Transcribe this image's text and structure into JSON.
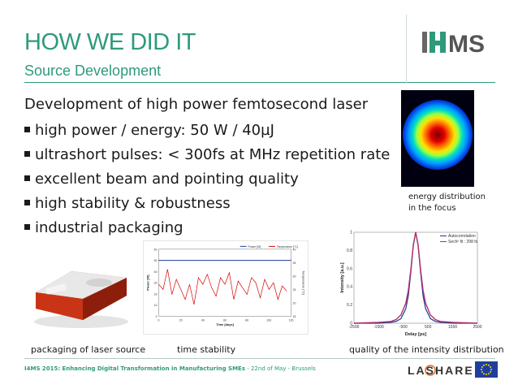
{
  "header": {
    "title": "HOW WE DID IT",
    "subtitle": "Source Development",
    "logo_text": "I4MS"
  },
  "content": {
    "intro": "Development of high power femtosecond laser",
    "bullets": [
      "high power / energy: 50 W / 40µJ",
      "ultrashort pulses: < 300fs at MHz repetition rate",
      "excellent beam and pointing quality",
      "high stability & robustness",
      "industrial packaging"
    ]
  },
  "figures": {
    "beam_caption_line1": "energy distribution",
    "beam_caption_line2": "in the focus",
    "laser_caption": "packaging of laser source",
    "stability_caption": "time stability",
    "intensity_caption": "quality of the intensity distribution"
  },
  "footer": {
    "event": "I4MS 2015:",
    "tagline": "Enhancing Digital Transformation in Manufacturing SMEs",
    "date_place": " - 22nd of May - Brussels",
    "partner_logo": "LASHARE"
  },
  "colors": {
    "accent": "#2e9a7c",
    "series_power": "#1f3a93",
    "series_temperature": "#d40000",
    "series_autocorrelation": "#1f3a93",
    "series_fit": "#b0306e"
  },
  "chart_data": [
    {
      "type": "line",
      "legend": [
        "Power [W]",
        "Temperature [°C]"
      ],
      "xlabel": "Time [days]",
      "ylabel": "Power [W]",
      "ylabel_right": "Temperature [°C]",
      "xlim": [
        0,
        120
      ],
      "ylim": [
        0,
        60
      ],
      "x_ticks": [
        "0",
        "20",
        "40",
        "60",
        "80",
        "100",
        "120"
      ],
      "y_ticks": [
        "0",
        "10",
        "20",
        "30",
        "40",
        "50",
        "60"
      ],
      "y_ticks_right": [
        "15",
        "20",
        "25",
        "30",
        "35",
        "40"
      ],
      "series": [
        {
          "name": "Power [W]",
          "x": [
            0,
            10,
            20,
            30,
            40,
            50,
            60,
            70,
            80,
            90,
            100,
            110,
            120
          ],
          "y": [
            50,
            50,
            50,
            50,
            50,
            50,
            50,
            50,
            50,
            50,
            50,
            50,
            50
          ]
        },
        {
          "name": "Temperature [°C]",
          "x": [
            0,
            4,
            8,
            12,
            16,
            20,
            24,
            28,
            32,
            36,
            40,
            44,
            48,
            52,
            56,
            60,
            64,
            68,
            72,
            76,
            80,
            84,
            88,
            92,
            96,
            100,
            104,
            108,
            112,
            116
          ],
          "y": [
            24,
            21,
            33,
            18,
            27,
            21,
            15,
            24,
            12,
            28,
            24,
            30,
            22,
            17,
            28,
            24,
            31,
            15,
            26,
            22,
            18,
            28,
            25,
            16,
            27,
            21,
            25,
            15,
            23,
            20
          ]
        }
      ]
    },
    {
      "type": "line",
      "legend": [
        "Autocorrelation",
        "Sech² fit : 298 fs"
      ],
      "xlabel": "Delay [ps]",
      "ylabel": "Intensity [a.u.]",
      "xlim": [
        -2500,
        2500
      ],
      "ylim": [
        0,
        1
      ],
      "x_ticks": [
        "-2500",
        "-1500",
        "-500",
        "500",
        "1500",
        "2500"
      ],
      "y_ticks": [
        "0",
        "0.2",
        "0.4",
        "0.6",
        "0.8",
        "1"
      ],
      "series": [
        {
          "name": "Autocorrelation",
          "x": [
            -2500,
            -1500,
            -1000,
            -800,
            -600,
            -400,
            -300,
            -200,
            -100,
            0,
            100,
            200,
            300,
            400,
            600,
            800,
            1000,
            1500,
            2500
          ],
          "y": [
            0,
            0,
            0.01,
            0.02,
            0.05,
            0.16,
            0.3,
            0.55,
            0.85,
            1.0,
            0.85,
            0.55,
            0.3,
            0.16,
            0.05,
            0.02,
            0.01,
            0,
            0
          ]
        },
        {
          "name": "Sech² fit : 298 fs",
          "x": [
            -2500,
            -1500,
            -1000,
            -800,
            -600,
            -400,
            -300,
            -200,
            -100,
            0,
            100,
            200,
            300,
            400,
            600,
            800,
            1000,
            1500,
            2500
          ],
          "y": [
            0,
            0.01,
            0.02,
            0.04,
            0.09,
            0.22,
            0.36,
            0.58,
            0.86,
            1.0,
            0.86,
            0.58,
            0.36,
            0.22,
            0.09,
            0.04,
            0.02,
            0.01,
            0
          ]
        }
      ]
    }
  ]
}
